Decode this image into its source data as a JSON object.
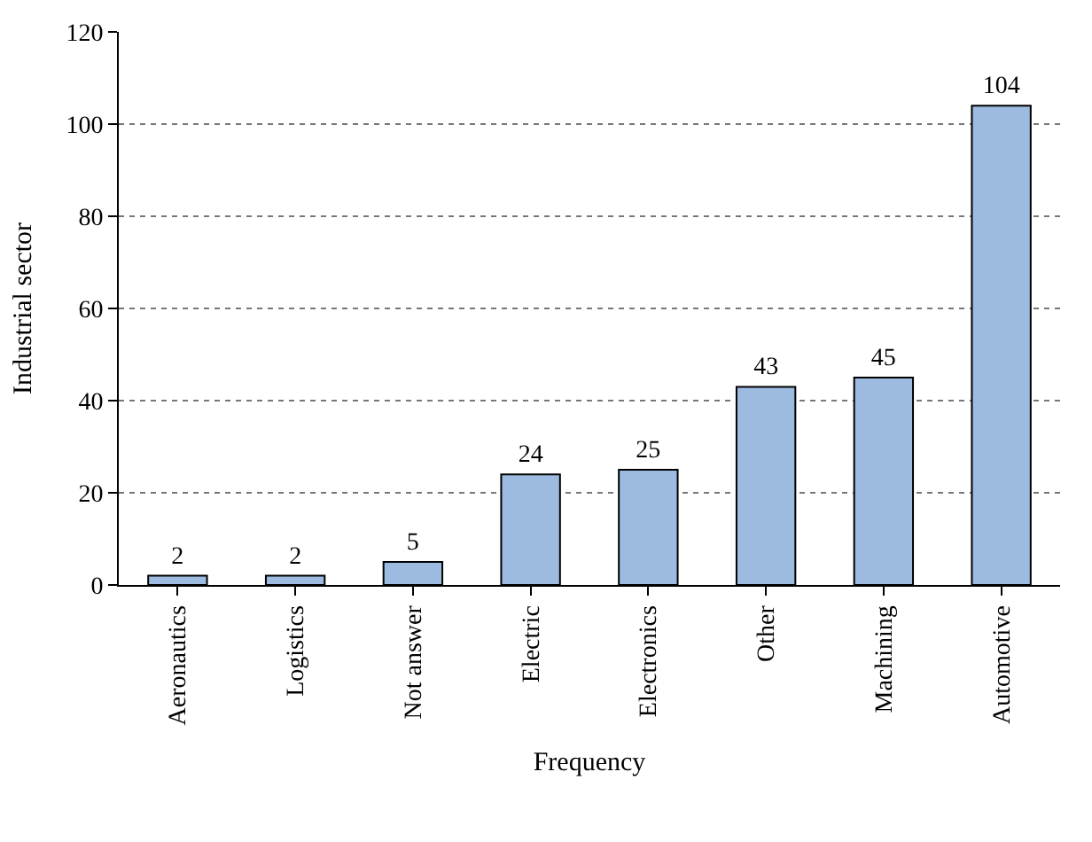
{
  "chart_data": {
    "type": "bar",
    "xlabel": "Frequency",
    "ylabel": "Industrial sector",
    "categories": [
      "Aeronautics",
      "Logistics",
      "Not answer",
      "Electric",
      "Electronics",
      "Other",
      "Machining",
      "Automotive"
    ],
    "values": [
      2,
      2,
      5,
      24,
      25,
      43,
      45,
      104
    ],
    "color": "#9dbbe0",
    "ylim": [
      0,
      120
    ],
    "yticks": [
      0,
      20,
      40,
      60,
      80,
      100,
      120
    ],
    "grid": "y",
    "line_style": "dotted",
    "data_labels": true
  }
}
